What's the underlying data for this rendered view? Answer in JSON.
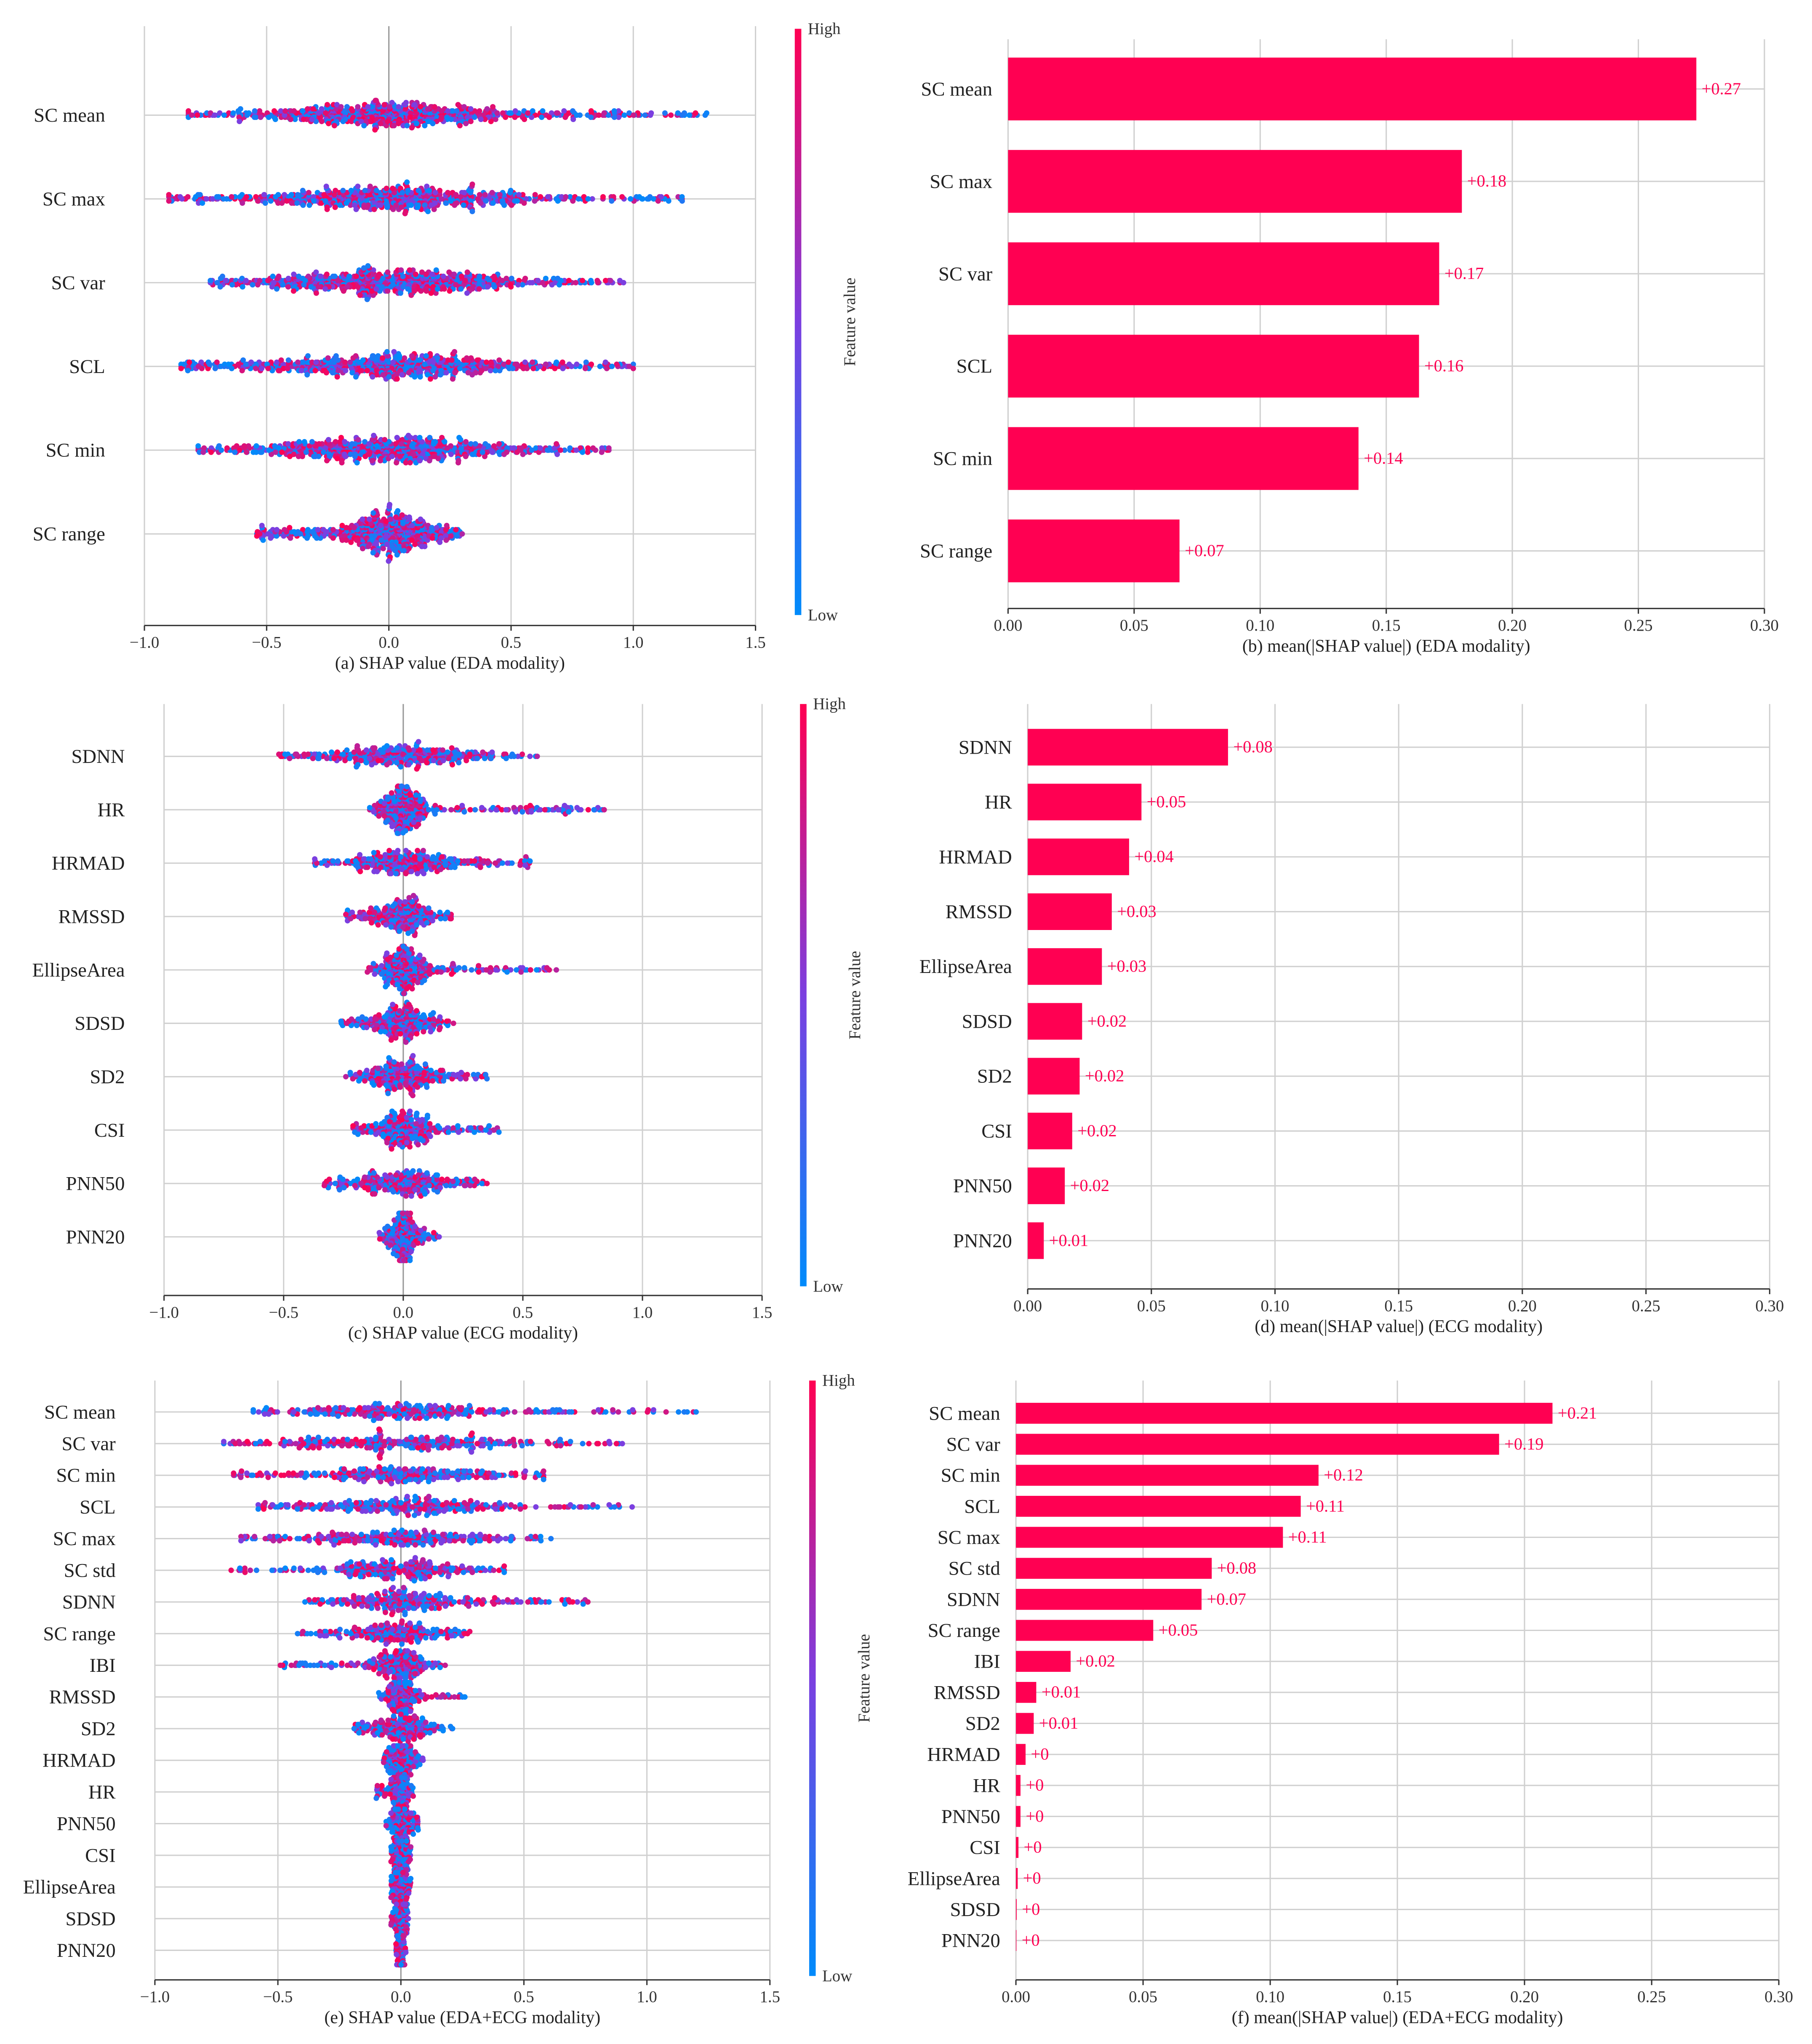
{
  "colors": {
    "high": "#ff0052",
    "low": "#008bfb",
    "mid": "#7b3fe0",
    "bar": "#ff0052"
  },
  "chart_data": [
    {
      "type": "scatter",
      "subtype": "beeswarm",
      "xlabel": "(a) SHAP value (EDA modality)",
      "xlim": [
        -1.0,
        1.5
      ],
      "xticks": [
        -1.0,
        -0.5,
        0.0,
        0.5,
        1.0,
        1.5
      ],
      "xtick_labels": [
        "−1.0",
        "−0.5",
        "0.0",
        "0.5",
        "1.0",
        "1.5"
      ],
      "colorbar": {
        "high": "High",
        "low": "Low",
        "label": "Feature value"
      },
      "features": [
        "SC mean",
        "SC max",
        "SC var",
        "SCL",
        "SC min",
        "SC range"
      ],
      "ranges": [
        [
          -0.82,
          1.3
        ],
        [
          -0.9,
          1.2
        ],
        [
          -0.73,
          0.96
        ],
        [
          -0.85,
          1.0
        ],
        [
          -0.78,
          0.9
        ],
        [
          -0.54,
          0.3
        ]
      ]
    },
    {
      "type": "bar",
      "xlabel": "(b) mean(|SHAP value|) (EDA modality)",
      "xlim": [
        0,
        0.3
      ],
      "xticks": [
        0,
        0.05,
        0.1,
        0.15,
        0.2,
        0.25,
        0.3
      ],
      "xtick_labels": [
        "0.00",
        "0.05",
        "0.10",
        "0.15",
        "0.20",
        "0.25",
        "0.30"
      ],
      "features": [
        "SC mean",
        "SC max",
        "SC var",
        "SCL",
        "SC min",
        "SC range"
      ],
      "values": [
        0.273,
        0.18,
        0.171,
        0.163,
        0.139,
        0.068
      ],
      "value_labels": [
        "+0.27",
        "+0.18",
        "+0.17",
        "+0.16",
        "+0.14",
        "+0.07"
      ]
    },
    {
      "type": "scatter",
      "subtype": "beeswarm",
      "xlabel": "(c) SHAP value (ECG modality)",
      "xlim": [
        -1.0,
        1.5
      ],
      "xticks": [
        -1.0,
        -0.5,
        0.0,
        0.5,
        1.0,
        1.5
      ],
      "xtick_labels": [
        "−1.0",
        "−0.5",
        "0.0",
        "0.5",
        "1.0",
        "1.5"
      ],
      "colorbar": {
        "high": "High",
        "low": "Low",
        "label": "Feature value"
      },
      "features": [
        "SDNN",
        "HR",
        "HRMAD",
        "RMSSD",
        "EllipseArea",
        "SDSD",
        "SD2",
        "CSI",
        "PNN50",
        "PNN20"
      ],
      "ranges": [
        [
          -0.52,
          0.56
        ],
        [
          -0.14,
          0.84
        ],
        [
          -0.37,
          0.53
        ],
        [
          -0.24,
          0.2
        ],
        [
          -0.15,
          0.64
        ],
        [
          -0.26,
          0.21
        ],
        [
          -0.24,
          0.35
        ],
        [
          -0.21,
          0.4
        ],
        [
          -0.33,
          0.35
        ],
        [
          -0.1,
          0.15
        ]
      ]
    },
    {
      "type": "bar",
      "xlabel": "(d) mean(|SHAP value|) (ECG modality)",
      "xlim": [
        0,
        0.3
      ],
      "xticks": [
        0,
        0.05,
        0.1,
        0.15,
        0.2,
        0.25,
        0.3
      ],
      "xtick_labels": [
        "0.00",
        "0.05",
        "0.10",
        "0.15",
        "0.20",
        "0.25",
        "0.30"
      ],
      "features": [
        "SDNN",
        "HR",
        "HRMAD",
        "RMSSD",
        "EllipseArea",
        "SDSD",
        "SD2",
        "CSI",
        "PNN50",
        "PNN20"
      ],
      "values": [
        0.081,
        0.046,
        0.041,
        0.034,
        0.03,
        0.022,
        0.021,
        0.018,
        0.015,
        0.0065
      ],
      "value_labels": [
        "+0.08",
        "+0.05",
        "+0.04",
        "+0.03",
        "+0.03",
        "+0.02",
        "+0.02",
        "+0.02",
        "+0.02",
        "+0.01"
      ]
    },
    {
      "type": "scatter",
      "subtype": "beeswarm",
      "xlabel": "(e) SHAP value (EDA+ECG modality)",
      "xlim": [
        -1.0,
        1.5
      ],
      "xticks": [
        -1.0,
        -0.5,
        0.0,
        0.5,
        1.0,
        1.5
      ],
      "xtick_labels": [
        "−1.0",
        "−0.5",
        "0.0",
        "0.5",
        "1.0",
        "1.5"
      ],
      "colorbar": {
        "high": "High",
        "low": "Low",
        "label": "Feature value"
      },
      "features": [
        "SC mean",
        "SC var",
        "SC min",
        "SCL",
        "SC max",
        "SC std",
        "SDNN",
        "SC range",
        "IBI",
        "RMSSD",
        "SD2",
        "HRMAD",
        "HR",
        "PNN50",
        "CSI",
        "EllipseArea",
        "SDSD",
        "PNN20"
      ],
      "ranges": [
        [
          -0.6,
          1.2
        ],
        [
          -0.72,
          0.9
        ],
        [
          -0.68,
          0.58
        ],
        [
          -0.58,
          0.94
        ],
        [
          -0.65,
          0.61
        ],
        [
          -0.69,
          0.42
        ],
        [
          -0.39,
          0.76
        ],
        [
          -0.42,
          0.28
        ],
        [
          -0.49,
          0.18
        ],
        [
          -0.09,
          0.26
        ],
        [
          -0.19,
          0.21
        ],
        [
          -0.07,
          0.09
        ],
        [
          -0.1,
          0.05
        ],
        [
          -0.06,
          0.07
        ],
        [
          -0.04,
          0.04
        ],
        [
          -0.04,
          0.04
        ],
        [
          -0.04,
          0.03
        ],
        [
          -0.02,
          0.02
        ]
      ]
    },
    {
      "type": "bar",
      "xlabel": "(f) mean(|SHAP value|) (EDA+ECG modality)",
      "xlim": [
        0,
        0.3
      ],
      "xticks": [
        0,
        0.05,
        0.1,
        0.15,
        0.2,
        0.25,
        0.3
      ],
      "xtick_labels": [
        "0.00",
        "0.05",
        "0.10",
        "0.15",
        "0.20",
        "0.25",
        "0.30"
      ],
      "features": [
        "SC mean",
        "SC var",
        "SC min",
        "SCL",
        "SC max",
        "SC std",
        "SDNN",
        "SC range",
        "IBI",
        "RMSSD",
        "SD2",
        "HRMAD",
        "HR",
        "PNN50",
        "CSI",
        "EllipseArea",
        "SDSD",
        "PNN20"
      ],
      "values": [
        0.211,
        0.19,
        0.119,
        0.112,
        0.105,
        0.077,
        0.073,
        0.054,
        0.0215,
        0.008,
        0.007,
        0.0038,
        0.0018,
        0.0018,
        0.001,
        0.0007,
        0.0003,
        0.0002
      ],
      "value_labels": [
        "+0.21",
        "+0.19",
        "+0.12",
        "+0.11",
        "+0.11",
        "+0.08",
        "+0.07",
        "+0.05",
        "+0.02",
        "+0.01",
        "+0.01",
        "+0",
        "+0",
        "+0",
        "+0",
        "+0",
        "+0",
        "+0"
      ]
    }
  ]
}
